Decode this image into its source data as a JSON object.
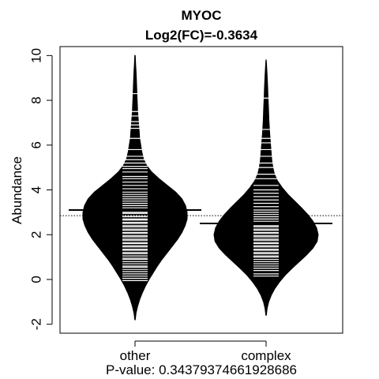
{
  "chart_data": {
    "type": "beanplot",
    "title": "MYOC",
    "subtitle": "Log2(FC)=-0.3634",
    "xlabel": "",
    "ylabel": "Abundance",
    "ylim": [
      -2.4,
      10.4
    ],
    "yticks": [
      -2,
      0,
      2,
      4,
      6,
      8,
      10
    ],
    "categories": [
      "other",
      "complex"
    ],
    "overall_mean": 2.85,
    "groups": [
      {
        "name": "other",
        "mean": 3.1,
        "range": [
          -1.8,
          10.0
        ],
        "density": [
          [
            -1.8,
            0.005
          ],
          [
            -1.5,
            0.02
          ],
          [
            -1.2,
            0.05
          ],
          [
            -0.9,
            0.09
          ],
          [
            -0.6,
            0.14
          ],
          [
            -0.3,
            0.2
          ],
          [
            0.0,
            0.27
          ],
          [
            0.3,
            0.35
          ],
          [
            0.6,
            0.43
          ],
          [
            0.9,
            0.52
          ],
          [
            1.2,
            0.62
          ],
          [
            1.5,
            0.72
          ],
          [
            1.8,
            0.82
          ],
          [
            2.1,
            0.9
          ],
          [
            2.4,
            0.96
          ],
          [
            2.7,
            1.0
          ],
          [
            3.0,
            1.0
          ],
          [
            3.3,
            0.97
          ],
          [
            3.6,
            0.9
          ],
          [
            3.9,
            0.78
          ],
          [
            4.2,
            0.62
          ],
          [
            4.5,
            0.46
          ],
          [
            4.8,
            0.32
          ],
          [
            5.1,
            0.22
          ],
          [
            5.4,
            0.16
          ],
          [
            5.7,
            0.13
          ],
          [
            6.0,
            0.11
          ],
          [
            6.3,
            0.09
          ],
          [
            6.6,
            0.08
          ],
          [
            6.9,
            0.07
          ],
          [
            7.2,
            0.06
          ],
          [
            7.5,
            0.05
          ],
          [
            7.8,
            0.045
          ],
          [
            8.1,
            0.04
          ],
          [
            8.4,
            0.035
          ],
          [
            8.7,
            0.03
          ],
          [
            9.0,
            0.025
          ],
          [
            9.3,
            0.02
          ],
          [
            9.6,
            0.012
          ],
          [
            10.0,
            0.004
          ]
        ],
        "points": [
          -0.05,
          0.05,
          0.15,
          0.25,
          0.35,
          0.45,
          0.55,
          0.6,
          0.7,
          0.8,
          0.9,
          0.95,
          1.05,
          1.15,
          1.2,
          1.3,
          1.35,
          1.45,
          1.5,
          1.6,
          1.65,
          1.75,
          1.8,
          1.9,
          1.95,
          2.05,
          2.1,
          2.2,
          2.25,
          2.35,
          2.4,
          2.5,
          2.55,
          2.65,
          2.7,
          2.8,
          2.85,
          2.95,
          3.0,
          3.1,
          3.2,
          3.3,
          3.4,
          3.5,
          3.6,
          3.7,
          3.8,
          3.9,
          4.05,
          4.2,
          4.35,
          4.5,
          4.6,
          4.8,
          4.95,
          5.05,
          5.2,
          5.35,
          5.5,
          5.8,
          6.3,
          6.75,
          6.9,
          7.05,
          7.3,
          7.5,
          8.3
        ]
      },
      {
        "name": "complex",
        "mean": 2.5,
        "range": [
          -1.6,
          9.8
        ],
        "density": [
          [
            -1.6,
            0.005
          ],
          [
            -1.3,
            0.02
          ],
          [
            -1.0,
            0.05
          ],
          [
            -0.7,
            0.1
          ],
          [
            -0.4,
            0.17
          ],
          [
            -0.1,
            0.26
          ],
          [
            0.2,
            0.37
          ],
          [
            0.5,
            0.5
          ],
          [
            0.8,
            0.64
          ],
          [
            1.1,
            0.78
          ],
          [
            1.4,
            0.9
          ],
          [
            1.7,
            0.98
          ],
          [
            2.0,
            1.0
          ],
          [
            2.3,
            0.97
          ],
          [
            2.6,
            0.9
          ],
          [
            2.9,
            0.8
          ],
          [
            3.2,
            0.68
          ],
          [
            3.5,
            0.55
          ],
          [
            3.8,
            0.42
          ],
          [
            4.1,
            0.31
          ],
          [
            4.4,
            0.22
          ],
          [
            4.7,
            0.16
          ],
          [
            5.0,
            0.13
          ],
          [
            5.3,
            0.11
          ],
          [
            5.6,
            0.1
          ],
          [
            5.9,
            0.09
          ],
          [
            6.2,
            0.08
          ],
          [
            6.5,
            0.07
          ],
          [
            6.8,
            0.062
          ],
          [
            7.1,
            0.055
          ],
          [
            7.4,
            0.05
          ],
          [
            7.7,
            0.045
          ],
          [
            8.0,
            0.04
          ],
          [
            8.3,
            0.035
          ],
          [
            8.6,
            0.03
          ],
          [
            8.9,
            0.025
          ],
          [
            9.2,
            0.018
          ],
          [
            9.5,
            0.01
          ],
          [
            9.8,
            0.003
          ]
        ],
        "points": [
          0.15,
          0.25,
          0.4,
          0.5,
          0.6,
          0.7,
          0.8,
          0.9,
          1.0,
          1.05,
          1.15,
          1.2,
          1.3,
          1.35,
          1.45,
          1.5,
          1.6,
          1.65,
          1.75,
          1.8,
          1.9,
          1.95,
          2.05,
          2.1,
          2.2,
          2.25,
          2.35,
          2.4,
          2.5,
          2.6,
          2.7,
          2.8,
          2.9,
          3.0,
          3.1,
          3.25,
          3.4,
          3.55,
          3.7,
          3.85,
          4.0,
          4.2,
          4.5,
          4.7,
          5.0,
          5.2,
          5.5,
          5.8,
          6.1,
          6.3,
          6.7,
          8.1
        ]
      }
    ],
    "pvalue_text": "P-value: 0.34379374661928686",
    "colors": {
      "bean": "#000000",
      "points": "#ffffff",
      "mean_line": "#000000"
    }
  }
}
